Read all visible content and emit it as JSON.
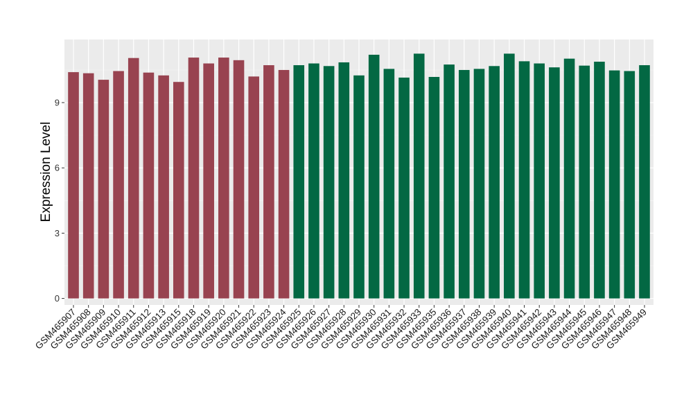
{
  "chart_data": {
    "type": "bar",
    "title": "",
    "xlabel": "",
    "ylabel": "Expression Level",
    "ylim": [
      -0.3,
      11.9
    ],
    "yticks": [
      0,
      3,
      6,
      9
    ],
    "grid": true,
    "legend": "none",
    "categories": [
      "GSM465907",
      "GSM465908",
      "GSM465909",
      "GSM465910",
      "GSM465911",
      "GSM465912",
      "GSM465913",
      "GSM465915",
      "GSM465918",
      "GSM465919",
      "GSM465920",
      "GSM465921",
      "GSM465922",
      "GSM465923",
      "GSM465924",
      "GSM465925",
      "GSM465926",
      "GSM465927",
      "GSM465928",
      "GSM465929",
      "GSM465930",
      "GSM465931",
      "GSM465932",
      "GSM465933",
      "GSM465935",
      "GSM465936",
      "GSM465937",
      "GSM465938",
      "GSM465939",
      "GSM465940",
      "GSM465941",
      "GSM465942",
      "GSM465943",
      "GSM465944",
      "GSM465945",
      "GSM465946",
      "GSM465947",
      "GSM465948",
      "GSM465949"
    ],
    "values": [
      10.4,
      10.35,
      10.05,
      10.45,
      11.05,
      10.38,
      10.25,
      9.95,
      11.07,
      10.8,
      11.07,
      10.95,
      10.2,
      10.72,
      10.5,
      10.72,
      10.8,
      10.68,
      10.85,
      10.25,
      11.2,
      10.55,
      10.15,
      11.25,
      10.18,
      10.75,
      10.5,
      10.55,
      10.68,
      11.25,
      10.9,
      10.8,
      10.62,
      11.02,
      10.7,
      10.88,
      10.48,
      10.45,
      10.72
    ],
    "group_sizes": [
      15,
      24
    ],
    "colors": {
      "group1": "#984350",
      "group2": "#036843",
      "panel_bg": "#ebebeb",
      "grid_major": "#ffffff",
      "grid_minor": "#f5f5f5"
    }
  }
}
